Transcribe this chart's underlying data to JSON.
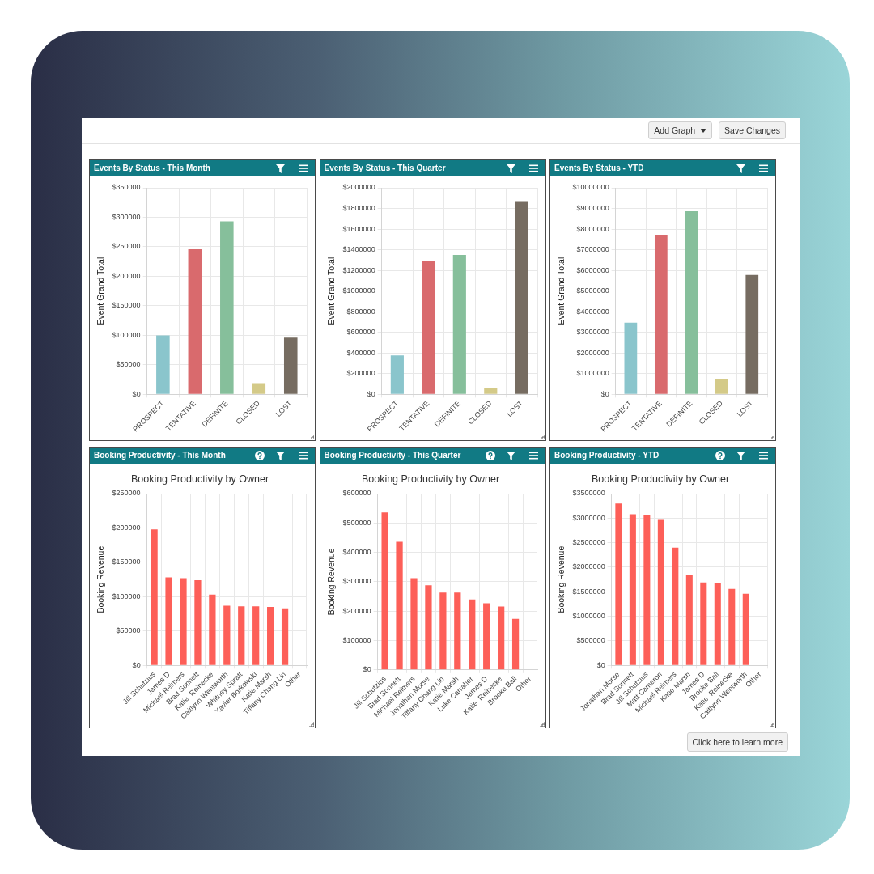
{
  "chart_data": [
    {
      "type": "other",
      "annotations": [
        "Add Graph",
        "Save Changes"
      ]
    },
    {
      "type": "bar",
      "title": "Events By Status - This Month",
      "ylabel": "Event Grand Total",
      "categories": [
        "PROSPECT",
        "TENTATIVE",
        "DEFINITE",
        "CLOSED",
        "LOST"
      ],
      "values": [
        100000,
        246000,
        293000,
        19000,
        96000
      ],
      "colors": [
        "#8ac5cc",
        "#d96a6d",
        "#86bf9b",
        "#d4ca88",
        "#766c61"
      ],
      "ylim": [
        0,
        350000
      ],
      "yticks": [
        {
          "value": 0,
          "label": "$0"
        },
        {
          "value": 50000,
          "label": "$50000"
        },
        {
          "value": 100000,
          "label": "$100000"
        },
        {
          "value": 150000,
          "label": "$150000"
        },
        {
          "value": 200000,
          "label": "$200000"
        },
        {
          "value": 250000,
          "label": "$250000"
        },
        {
          "value": 300000,
          "label": "$300000"
        },
        {
          "value": 350000,
          "label": "$350000"
        }
      ],
      "grid": true
    },
    {
      "type": "bar",
      "title": "Events By Status - This Quarter",
      "ylabel": "Event Grand Total",
      "categories": [
        "PROSPECT",
        "TENTATIVE",
        "DEFINITE",
        "CLOSED",
        "LOST"
      ],
      "values": [
        377000,
        1290000,
        1350000,
        62000,
        1870000
      ],
      "colors": [
        "#8ac5cc",
        "#d96a6d",
        "#86bf9b",
        "#d4ca88",
        "#766c61"
      ],
      "ylim": [
        0,
        2000000
      ],
      "yticks": [
        {
          "value": 0,
          "label": "$0"
        },
        {
          "value": 200000,
          "label": "$200000"
        },
        {
          "value": 400000,
          "label": "$400000"
        },
        {
          "value": 600000,
          "label": "$600000"
        },
        {
          "value": 800000,
          "label": "$800000"
        },
        {
          "value": 1000000,
          "label": "$1000000"
        },
        {
          "value": 1200000,
          "label": "$1200000"
        },
        {
          "value": 1400000,
          "label": "$1400000"
        },
        {
          "value": 1600000,
          "label": "$1600000"
        },
        {
          "value": 1800000,
          "label": "$1800000"
        },
        {
          "value": 2000000,
          "label": "$2000000"
        }
      ],
      "grid": true
    },
    {
      "type": "bar",
      "title": "Events By Status - YTD",
      "ylabel": "Event Grand Total",
      "categories": [
        "PROSPECT",
        "TENTATIVE",
        "DEFINITE",
        "CLOSED",
        "LOST"
      ],
      "values": [
        3470000,
        7690000,
        8860000,
        760000,
        5780000
      ],
      "colors": [
        "#8ac5cc",
        "#d96a6d",
        "#86bf9b",
        "#d4ca88",
        "#766c61"
      ],
      "ylim": [
        0,
        10000000
      ],
      "yticks": [
        {
          "value": 0,
          "label": "$0"
        },
        {
          "value": 1000000,
          "label": "$1000000"
        },
        {
          "value": 2000000,
          "label": "$2000000"
        },
        {
          "value": 3000000,
          "label": "$3000000"
        },
        {
          "value": 4000000,
          "label": "$4000000"
        },
        {
          "value": 5000000,
          "label": "$5000000"
        },
        {
          "value": 6000000,
          "label": "$6000000"
        },
        {
          "value": 7000000,
          "label": "$7000000"
        },
        {
          "value": 8000000,
          "label": "$8000000"
        },
        {
          "value": 9000000,
          "label": "$9000000"
        },
        {
          "value": 10000000,
          "label": "$10000000"
        }
      ],
      "grid": true
    },
    {
      "type": "bar",
      "title": "Booking Productivity - This Month",
      "subtitle": "Booking Productivity by Owner",
      "ylabel": "Booking Revenue",
      "categories": [
        "Jill Schutzius",
        "James D",
        "Michael Reimers",
        "Brad Sonnett",
        "Katie  Reinecke",
        "Caitlynn Wentworth",
        "Whitney Spratt",
        "Xavier Borkowski",
        "Katie Marsh",
        "Tiffany Chang Lin",
        "Other"
      ],
      "values": [
        198000,
        128000,
        127000,
        124000,
        103000,
        87000,
        86000,
        86000,
        85000,
        83000,
        null
      ],
      "color": "#fd5f58",
      "ylim": [
        0,
        250000
      ],
      "yticks": [
        {
          "value": 0,
          "label": "$0"
        },
        {
          "value": 50000,
          "label": "$50000"
        },
        {
          "value": 100000,
          "label": "$100000"
        },
        {
          "value": 150000,
          "label": "$150000"
        },
        {
          "value": 200000,
          "label": "$200000"
        },
        {
          "value": 250000,
          "label": "$250000"
        }
      ],
      "grid": true
    },
    {
      "type": "bar",
      "title": "Booking Productivity - This Quarter",
      "subtitle": "Booking Productivity by Owner",
      "ylabel": "Booking Revenue",
      "categories": [
        "Jill Schutzius",
        "Brad Sonnett",
        "Michael Reimers",
        "Jonathan Morse",
        "Tiffany Chang Lin",
        "Katie Marsh",
        "Luke Carraher",
        "James D",
        "Katie  Reinecke",
        "Brooke Ball",
        "Other"
      ],
      "values": [
        536000,
        436000,
        312000,
        288000,
        263000,
        263000,
        240000,
        227000,
        216000,
        174000,
        null
      ],
      "color": "#fd5f58",
      "ylim": [
        0,
        600000
      ],
      "yticks": [
        {
          "value": 0,
          "label": "$0"
        },
        {
          "value": 100000,
          "label": "$100000"
        },
        {
          "value": 200000,
          "label": "$200000"
        },
        {
          "value": 300000,
          "label": "$300000"
        },
        {
          "value": 400000,
          "label": "$400000"
        },
        {
          "value": 500000,
          "label": "$500000"
        },
        {
          "value": 600000,
          "label": "$600000"
        }
      ],
      "grid": true
    },
    {
      "type": "bar",
      "title": "Booking Productivity - YTD",
      "subtitle": "Booking Productivity by Owner",
      "ylabel": "Booking Revenue",
      "categories": [
        "Jonathan Morse",
        "Brad Sonnett",
        "Jill Schutzius",
        "Matt Cameron",
        "Michael Reimers",
        "Katie Marsh",
        "James D",
        "Brooke Ball",
        "Katie  Reinecke",
        "Caitlynn Wentworth",
        "Other"
      ],
      "values": [
        3300000,
        3080000,
        3070000,
        2980000,
        2400000,
        1850000,
        1690000,
        1670000,
        1560000,
        1460000,
        null
      ],
      "color": "#fd5f58",
      "ylim": [
        0,
        3500000
      ],
      "yticks": [
        {
          "value": 0,
          "label": "$0"
        },
        {
          "value": 500000,
          "label": "$500000"
        },
        {
          "value": 1000000,
          "label": "$1000000"
        },
        {
          "value": 1500000,
          "label": "$1500000"
        },
        {
          "value": 2000000,
          "label": "$2000000"
        },
        {
          "value": 2500000,
          "label": "$2500000"
        },
        {
          "value": 3000000,
          "label": "$3000000"
        },
        {
          "value": 3500000,
          "label": "$3500000"
        }
      ],
      "grid": true
    },
    {
      "type": "other",
      "annotations": [
        "Click here to learn more"
      ]
    }
  ]
}
